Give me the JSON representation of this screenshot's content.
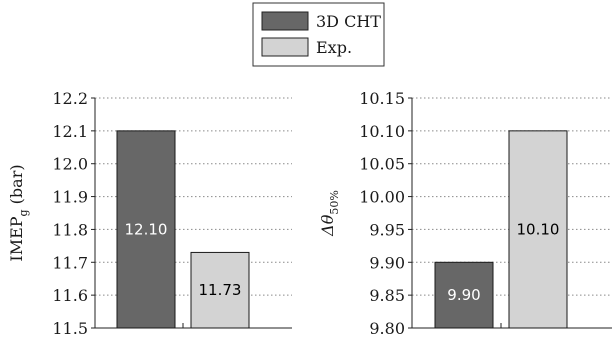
{
  "legend": {
    "items": [
      {
        "label": "3D CHT",
        "color": "#676767"
      },
      {
        "label": "Exp.",
        "color": "#d3d3d3"
      }
    ]
  },
  "chart_data": [
    {
      "type": "bar",
      "ylabel_main": "IMEP",
      "ylabel_sub": "g",
      "ylabel_unit": " (bar)",
      "ylim": [
        11.5,
        12.2
      ],
      "yticks": [
        "11.5",
        "11.6",
        "11.7",
        "11.8",
        "11.9",
        "12.0",
        "12.1",
        "12.2"
      ],
      "grid": "horizontal dotted",
      "series": [
        {
          "name": "3D CHT",
          "values": [
            12.1
          ],
          "data_label": "12.10",
          "color": "#676767",
          "label_color": "#ffffff"
        },
        {
          "name": "Exp.",
          "values": [
            11.73
          ],
          "data_label": "11.73",
          "color": "#d3d3d3",
          "label_color": "#000000"
        }
      ]
    },
    {
      "type": "bar",
      "ylabel_main": "Δθ",
      "ylabel_sub": "50%",
      "ylabel_unit": "",
      "ylim": [
        9.8,
        10.15
      ],
      "yticks": [
        "9.80",
        "9.85",
        "9.90",
        "9.95",
        "10.00",
        "10.05",
        "10.10",
        "10.15"
      ],
      "grid": "horizontal dotted",
      "series": [
        {
          "name": "3D CHT",
          "values": [
            9.9
          ],
          "data_label": "9.90",
          "color": "#676767",
          "label_color": "#ffffff"
        },
        {
          "name": "Exp.",
          "values": [
            10.1
          ],
          "data_label": "10.10",
          "color": "#d3d3d3",
          "label_color": "#000000"
        }
      ]
    }
  ]
}
